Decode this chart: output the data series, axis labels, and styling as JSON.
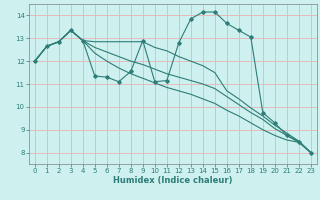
{
  "xlabel": "Humidex (Indice chaleur)",
  "bg_color": "#cef0ee",
  "grid_color": "#e8b4b4",
  "line_color": "#2d7d78",
  "xlim": [
    -0.5,
    23.5
  ],
  "ylim": [
    7.5,
    14.5
  ],
  "xticks": [
    0,
    1,
    2,
    3,
    4,
    5,
    6,
    7,
    8,
    9,
    10,
    11,
    12,
    13,
    14,
    15,
    16,
    17,
    18,
    19,
    20,
    21,
    22,
    23
  ],
  "yticks": [
    8,
    9,
    10,
    11,
    12,
    13,
    14
  ],
  "series": [
    {
      "x": [
        0,
        1,
        2,
        3,
        4,
        5,
        6,
        7,
        8,
        9,
        10,
        11,
        12,
        13,
        14,
        15,
        16,
        17,
        18,
        19,
        20,
        21,
        22,
        23
      ],
      "y": [
        12.0,
        12.65,
        12.85,
        13.35,
        12.9,
        11.35,
        11.3,
        11.1,
        11.55,
        12.9,
        11.1,
        11.15,
        12.8,
        13.85,
        14.15,
        14.15,
        13.65,
        13.35,
        13.05,
        9.75,
        9.3,
        8.75,
        8.45,
        8.0
      ],
      "marker": true
    },
    {
      "x": [
        0,
        1,
        2,
        3,
        4,
        5,
        6,
        7,
        8,
        9,
        10,
        11,
        12,
        13,
        14,
        15,
        16,
        17,
        18,
        19,
        20,
        21,
        22,
        23
      ],
      "y": [
        12.0,
        12.65,
        12.85,
        13.35,
        12.9,
        12.85,
        12.85,
        12.85,
        12.85,
        12.85,
        12.6,
        12.45,
        12.2,
        12.0,
        11.8,
        11.5,
        10.7,
        10.35,
        9.95,
        9.6,
        9.2,
        8.85,
        8.5,
        8.0
      ],
      "marker": false
    },
    {
      "x": [
        0,
        1,
        2,
        3,
        4,
        5,
        6,
        7,
        8,
        9,
        10,
        11,
        12,
        13,
        14,
        15,
        16,
        17,
        18,
        19,
        20,
        21,
        22,
        23
      ],
      "y": [
        12.0,
        12.65,
        12.85,
        13.35,
        12.9,
        12.6,
        12.4,
        12.2,
        12.0,
        11.85,
        11.65,
        11.45,
        11.3,
        11.15,
        11.0,
        10.8,
        10.45,
        10.1,
        9.75,
        9.45,
        9.05,
        8.75,
        8.5,
        8.0
      ],
      "marker": false
    },
    {
      "x": [
        0,
        1,
        2,
        3,
        4,
        5,
        6,
        7,
        8,
        9,
        10,
        11,
        12,
        13,
        14,
        15,
        16,
        17,
        18,
        19,
        20,
        21,
        22,
        23
      ],
      "y": [
        12.0,
        12.65,
        12.85,
        13.35,
        12.9,
        12.35,
        12.0,
        11.7,
        11.45,
        11.25,
        11.05,
        10.85,
        10.7,
        10.55,
        10.35,
        10.15,
        9.85,
        9.6,
        9.3,
        9.0,
        8.75,
        8.55,
        8.45,
        8.0
      ],
      "marker": false
    }
  ]
}
